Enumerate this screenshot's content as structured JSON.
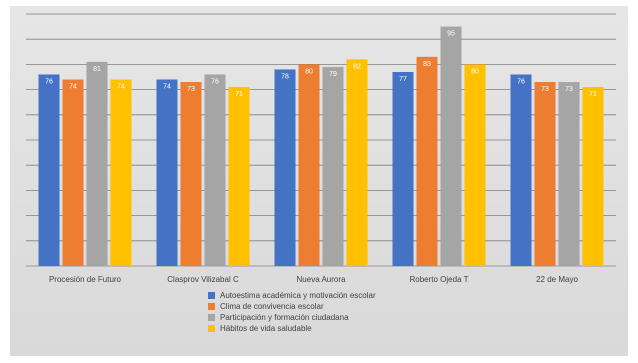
{
  "chart_data": {
    "type": "bar",
    "title": "",
    "xlabel": "",
    "ylabel": "",
    "ylim": [
      0,
      100
    ],
    "grid": true,
    "legend_position": "bottom",
    "categories": [
      "Procesión de Futuro",
      "Clasprov Vilizabal C",
      "Nueva Aurora",
      "Roberto Ojeda T",
      "22 de Mayo"
    ],
    "series": [
      {
        "name": "Autoestima académica y motivación escolar",
        "color": "#4472c4",
        "values": [
          76,
          74,
          78,
          77,
          76
        ]
      },
      {
        "name": "Clima de convivencia escolar",
        "color": "#ed7d31",
        "values": [
          74,
          73,
          80,
          83,
          73
        ]
      },
      {
        "name": "Participación y formación ciudadana",
        "color": "#a5a5a5",
        "values": [
          81,
          76,
          79,
          95,
          73
        ]
      },
      {
        "name": "Hábitos de vida saludable",
        "color": "#ffc000",
        "values": [
          74,
          71,
          82,
          80,
          71
        ]
      }
    ]
  }
}
